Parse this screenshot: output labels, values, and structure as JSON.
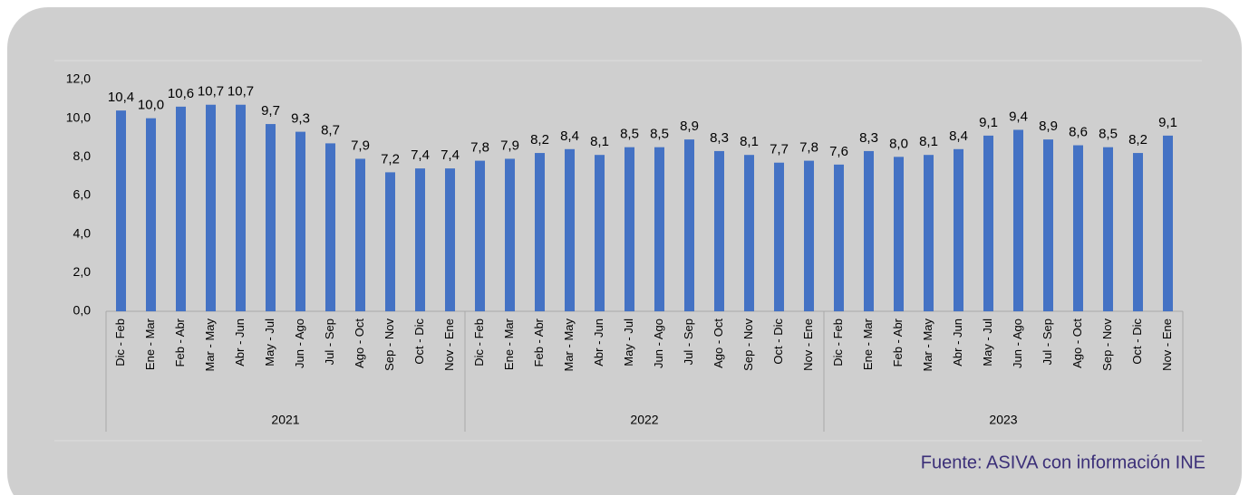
{
  "chart_data": {
    "type": "bar",
    "categories": [
      "Dic - Feb",
      "Ene - Mar",
      "Feb - Abr",
      "Mar - May",
      "Abr - Jun",
      "May - Jul",
      "Jun - Ago",
      "Jul - Sep",
      "Ago - Oct",
      "Sep - Nov",
      "Oct - Dic",
      "Nov - Ene",
      "Dic - Feb",
      "Ene - Mar",
      "Feb - Abr",
      "Mar - May",
      "Abr - Jun",
      "May - Jul",
      "Jun - Ago",
      "Jul - Sep",
      "Ago - Oct",
      "Sep - Nov",
      "Oct - Dic",
      "Nov - Ene",
      "Dic - Feb",
      "Ene - Mar",
      "Feb - Abr",
      "Mar - May",
      "Abr - Jun",
      "May - Jul",
      "Jun - Ago",
      "Jul - Sep",
      "Ago - Oct",
      "Sep - Nov",
      "Oct - Dic",
      "Nov - Ene"
    ],
    "groups": [
      "2021",
      "2022",
      "2023"
    ],
    "values": [
      10.4,
      10.0,
      10.6,
      10.7,
      10.7,
      9.7,
      9.3,
      8.7,
      7.9,
      7.2,
      7.4,
      7.4,
      7.8,
      7.9,
      8.2,
      8.4,
      8.1,
      8.5,
      8.5,
      8.9,
      8.3,
      8.1,
      7.7,
      7.8,
      7.6,
      8.3,
      8.0,
      8.1,
      8.4,
      9.1,
      9.4,
      8.9,
      8.6,
      8.5,
      8.2,
      9.1
    ],
    "value_labels": [
      "10,4",
      "10,0",
      "10,6",
      "10,7",
      "10,7",
      "9,7",
      "9,3",
      "8,7",
      "7,9",
      "7,2",
      "7,4",
      "7,4",
      "7,8",
      "7,9",
      "8,2",
      "8,4",
      "8,1",
      "8,5",
      "8,5",
      "8,9",
      "8,3",
      "8,1",
      "7,7",
      "7,8",
      "7,6",
      "8,3",
      "8,0",
      "8,1",
      "8,4",
      "9,1",
      "9,4",
      "8,9",
      "8,6",
      "8,5",
      "8,2",
      "9,1"
    ],
    "color": "#4472c4",
    "ylim": [
      0,
      12
    ],
    "yticks": [
      {
        "value": 0,
        "label": "0,0"
      },
      {
        "value": 2,
        "label": "2,0"
      },
      {
        "value": 4,
        "label": "4,0"
      },
      {
        "value": 6,
        "label": "6,0"
      },
      {
        "value": 8,
        "label": "8,0"
      },
      {
        "value": 10,
        "label": "10,0"
      },
      {
        "value": 12,
        "label": "12,0"
      }
    ],
    "grid": false,
    "source": "Fuente: ASIVA con información INE"
  }
}
